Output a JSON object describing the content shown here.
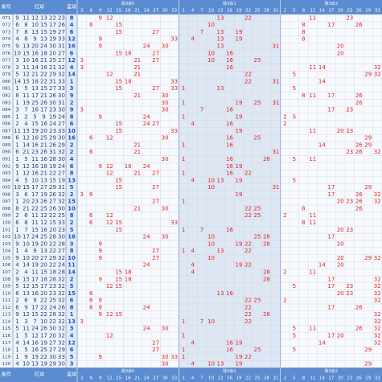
{
  "header": {
    "period": "期号",
    "reds": "红球",
    "blue": "蓝球"
  },
  "zones": [
    {
      "label": "除3余0",
      "cols": [
        3,
        6,
        9,
        12,
        15,
        18,
        21,
        24,
        27,
        30,
        33
      ]
    },
    {
      "label": "除3余1",
      "cols": [
        1,
        4,
        7,
        10,
        13,
        16,
        19,
        22,
        25,
        28,
        31
      ]
    },
    {
      "label": "除3余2",
      "cols": [
        2,
        5,
        8,
        11,
        14,
        17,
        20,
        23,
        26,
        29,
        32
      ]
    }
  ],
  "rows": [
    {
      "id": "071",
      "reds": [
        9,
        11,
        12,
        13,
        22,
        23
      ],
      "blue": 8
    },
    {
      "id": "072",
      "reds": [
        6,
        8,
        10,
        15,
        17,
        26
      ],
      "blue": 4
    },
    {
      "id": "073",
      "reds": [
        7,
        8,
        13,
        15,
        19,
        27
      ],
      "blue": 6
    },
    {
      "id": "074",
      "reds": [
        4,
        8,
        9,
        13,
        19,
        33
      ],
      "blue": 12
    },
    {
      "id": "075",
      "reds": [
        9,
        13,
        20,
        24,
        30,
        31
      ],
      "blue": 16
    },
    {
      "id": "076",
      "reds": [
        10,
        15,
        16,
        18,
        20,
        27
      ],
      "blue": 6
    },
    {
      "id": "077",
      "reds": [
        3,
        10,
        16,
        21,
        25,
        27
      ],
      "blue": 12
    },
    {
      "id": "078",
      "reds": [
        3,
        11,
        14,
        16,
        21,
        32
      ],
      "blue": 4
    },
    {
      "id": "079",
      "reds": [
        5,
        12,
        21,
        22,
        29,
        32
      ],
      "blue": 14
    },
    {
      "id": "080",
      "reds": [
        14,
        15,
        18,
        22,
        31,
        33
      ],
      "blue": 1
    },
    {
      "id": "081",
      "reds": [
        1,
        5,
        13,
        15,
        27,
        33
      ],
      "blue": 3
    },
    {
      "id": "082",
      "reds": [
        8,
        11,
        17,
        21,
        26,
        30
      ],
      "blue": 9
    },
    {
      "id": "083",
      "reds": [
        1,
        19,
        25,
        26,
        30,
        31
      ],
      "blue": 2
    },
    {
      "id": "084",
      "reds": [
        3,
        7,
        16,
        17,
        23,
        30
      ],
      "blue": 9
    },
    {
      "id": "085",
      "reds": [
        1,
        2,
        5,
        9,
        19,
        24
      ],
      "blue": 8
    },
    {
      "id": "086",
      "reds": [
        2,
        4,
        15,
        16,
        24,
        27
      ],
      "blue": 6
    },
    {
      "id": "087",
      "reds": [
        11,
        15,
        19,
        20,
        23,
        33
      ],
      "blue": 10
    },
    {
      "id": "088",
      "reds": [
        6,
        12,
        16,
        25,
        29,
        30
      ],
      "blue": 16
    },
    {
      "id": "089",
      "reds": [
        1,
        14,
        16,
        21,
        26,
        29
      ],
      "blue": 2
    },
    {
      "id": "090",
      "reds": [
        6,
        21,
        23,
        26,
        31,
        32
      ],
      "blue": 2
    },
    {
      "id": "091",
      "reds": [
        1,
        5,
        11,
        16,
        28,
        30
      ],
      "blue": 4
    },
    {
      "id": "092",
      "reds": [
        9,
        12,
        16,
        18,
        19,
        24
      ],
      "blue": 6
    },
    {
      "id": "093",
      "reds": [
        1,
        12,
        16,
        21,
        22,
        27
      ],
      "blue": 8
    },
    {
      "id": "094",
      "reds": [
        4,
        5,
        10,
        13,
        15,
        19
      ],
      "blue": 13
    },
    {
      "id": "095",
      "reds": [
        10,
        15,
        17,
        27,
        29,
        31
      ],
      "blue": 5
    },
    {
      "id": "096",
      "reds": [
        3,
        6,
        17,
        19,
        26,
        32
      ],
      "blue": 2
    },
    {
      "id": "097",
      "reds": [
        1,
        20,
        23,
        26,
        27,
        32
      ],
      "blue": 15
    },
    {
      "id": "098",
      "reds": [
        8,
        21,
        22,
        25,
        26,
        30
      ],
      "blue": 10
    },
    {
      "id": "099",
      "reds": [
        2,
        6,
        11,
        12,
        22,
        25
      ],
      "blue": 8
    },
    {
      "id": "100",
      "reds": [
        6,
        8,
        11,
        12,
        15,
        33
      ],
      "blue": 2
    },
    {
      "id": "101",
      "reds": [
        1,
        7,
        15,
        16,
        20,
        23
      ],
      "blue": 5
    },
    {
      "id": "102",
      "reds": [
        10,
        17,
        24,
        25,
        28,
        30
      ],
      "blue": 16
    },
    {
      "id": "103",
      "reds": [
        9,
        10,
        19,
        20,
        22,
        28
      ],
      "blue": 3
    },
    {
      "id": "104",
      "reds": [
        1,
        4,
        9,
        13,
        22,
        27
      ],
      "blue": 8
    },
    {
      "id": "105",
      "reds": [
        9,
        10,
        20,
        27,
        29,
        32
      ],
      "blue": 10
    },
    {
      "id": "106",
      "reds": [
        4,
        14,
        19,
        20,
        22,
        24
      ],
      "blue": 11
    },
    {
      "id": "107",
      "reds": [
        2,
        4,
        11,
        15,
        18,
        28
      ],
      "blue": 14
    },
    {
      "id": "108",
      "reds": [
        9,
        15,
        17,
        18,
        28,
        32
      ],
      "blue": 2
    },
    {
      "id": "109",
      "reds": [
        5,
        12,
        15,
        17,
        23,
        32
      ],
      "blue": 5
    },
    {
      "id": "110",
      "reds": [
        6,
        13,
        16,
        20,
        23,
        32
      ],
      "blue": 15
    },
    {
      "id": "111",
      "reds": [
        2,
        6,
        9,
        22,
        25,
        32
      ],
      "blue": 6
    },
    {
      "id": "112",
      "reds": [
        6,
        9,
        17,
        22,
        24,
        26
      ],
      "blue": 8
    },
    {
      "id": "113",
      "reds": [
        9,
        12,
        15,
        22,
        28,
        32
      ],
      "blue": 1
    },
    {
      "id": "114",
      "reds": [
        1,
        3,
        7,
        10,
        22,
        32
      ],
      "blue": 13
    },
    {
      "id": "115",
      "reds": [
        5,
        11,
        24,
        26,
        30,
        32
      ],
      "blue": 3
    },
    {
      "id": "116",
      "reds": [
        1,
        5,
        12,
        17,
        20,
        32
      ],
      "blue": 4
    },
    {
      "id": "117",
      "reds": [
        4,
        14,
        16,
        19,
        27,
        32
      ],
      "blue": 12
    },
    {
      "id": "118",
      "reds": [
        1,
        5,
        16,
        25,
        27,
        29
      ],
      "blue": 6
    },
    {
      "id": "119",
      "reds": [
        1,
        9,
        19,
        22,
        30,
        33
      ],
      "blue": 5
    },
    {
      "id": "120",
      "reds": [
        4,
        10,
        13,
        19,
        29,
        30
      ],
      "blue": 3
    }
  ]
}
